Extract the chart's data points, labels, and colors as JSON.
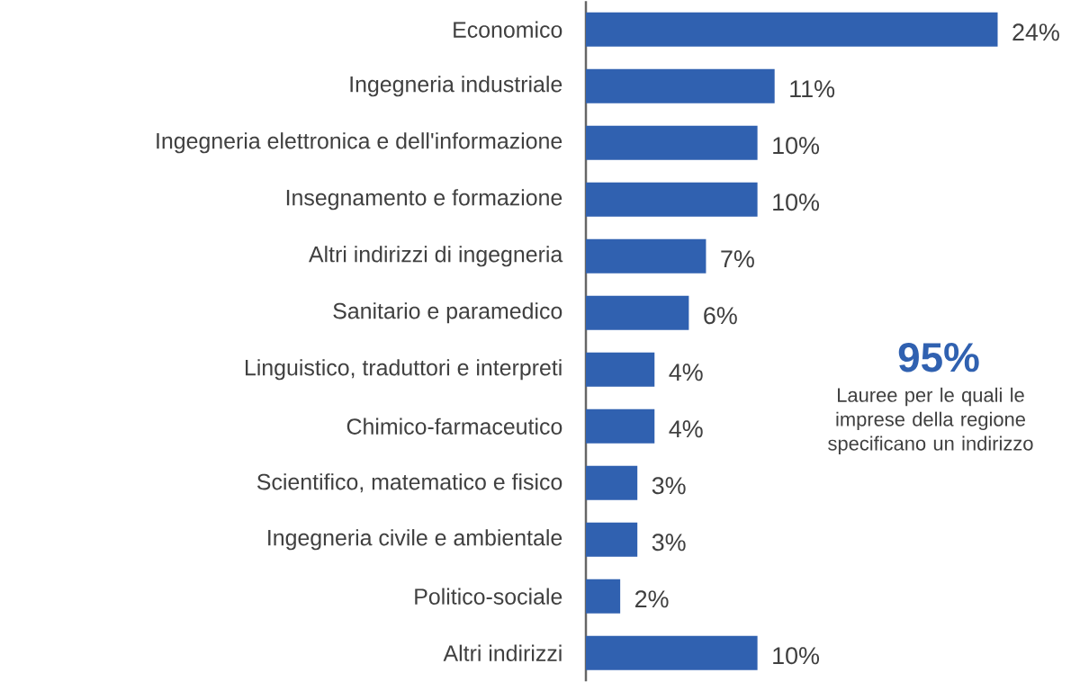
{
  "chart_data": {
    "type": "bar",
    "orientation": "horizontal",
    "categories": [
      "Economico",
      "Ingegneria industriale",
      "Ingegneria elettronica e dell'informazione",
      "Insegnamento e formazione",
      "Altri indirizzi di ingegneria",
      "Sanitario e paramedico",
      "Linguistico, traduttori e interpreti",
      "Chimico-farmaceutico",
      "Scientifico, matematico e fisico",
      "Ingegneria civile e ambientale",
      "Politico-sociale",
      "Altri indirizzi"
    ],
    "values": [
      24,
      11,
      10,
      10,
      7,
      6,
      4,
      4,
      3,
      3,
      2,
      10
    ],
    "value_labels": [
      "24%",
      "11%",
      "10%",
      "10%",
      "7%",
      "6%",
      "4%",
      "4%",
      "3%",
      "3%",
      "2%",
      "10%"
    ],
    "color": "#3061b0",
    "annotations": [
      "95%",
      "Lauree per le quali le imprese della regione specificano un indirizzo"
    ]
  }
}
